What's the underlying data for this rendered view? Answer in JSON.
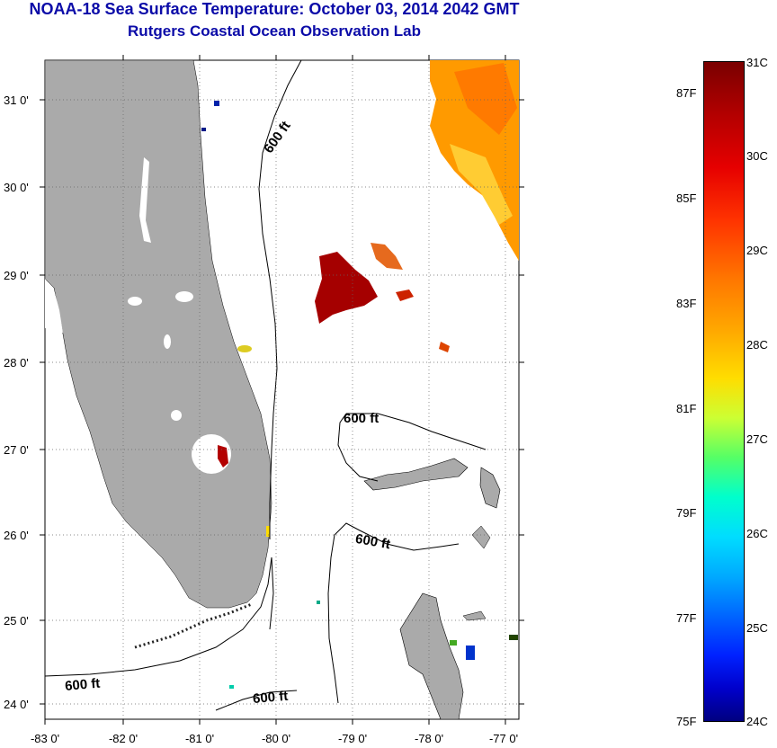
{
  "title": {
    "line1": "NOAA-18 Sea Surface Temperature:  October 03, 2014 2042 GMT",
    "line2": "Rutgers Coastal Ocean Observation Lab"
  },
  "axes": {
    "lat_labels": [
      "31 0'",
      "30 0'",
      "29 0'",
      "28 0'",
      "27 0'",
      "26 0'",
      "25 0'",
      "24 0'"
    ],
    "lon_labels": [
      "-83 0'",
      "-82 0'",
      "-81 0'",
      "-80 0'",
      "-79 0'",
      "-78 0'",
      "-77 0'"
    ]
  },
  "contour_labels": [
    "600 ft",
    "600 ft",
    "600 ft",
    "600 ft",
    "600 ft"
  ],
  "colorbar": {
    "celsius_labels": [
      "31C",
      "30C",
      "29C",
      "28C",
      "27C",
      "26C",
      "25C",
      "24C"
    ],
    "fahrenheit_labels": [
      "87F",
      "85F",
      "83F",
      "81F",
      "79F",
      "77F",
      "75F"
    ]
  },
  "colors": {
    "land": "#aaaaaa",
    "title": "#0b0ba8",
    "warm_high": "#8b0000",
    "warm_mid": "#ff6600",
    "warm_low": "#ffcc00"
  }
}
